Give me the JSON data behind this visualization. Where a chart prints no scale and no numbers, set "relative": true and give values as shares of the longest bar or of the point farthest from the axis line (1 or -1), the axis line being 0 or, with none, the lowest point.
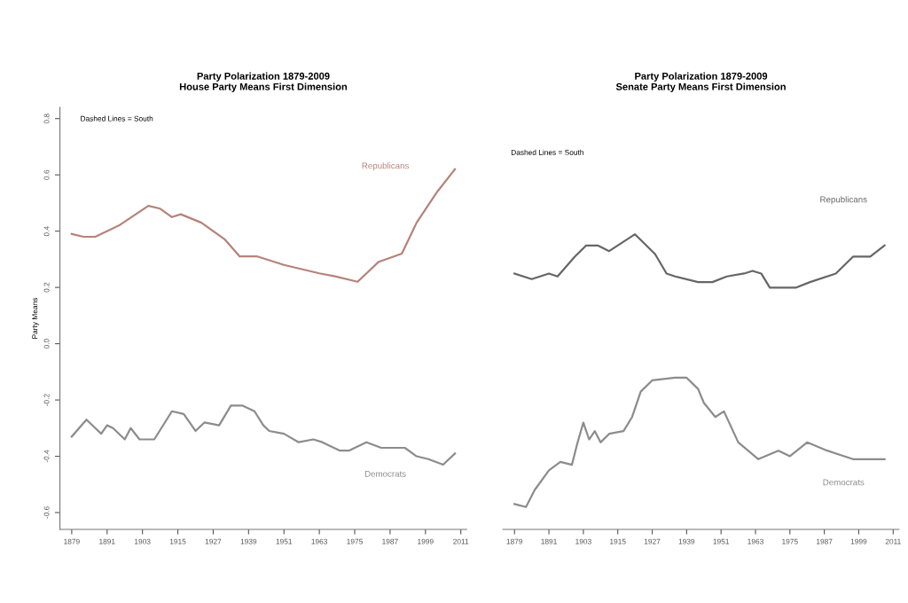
{
  "chart_data": [
    {
      "type": "line",
      "title": "Party Polarization 1879-2009",
      "subtitle": "House Party Means First Dimension",
      "ylabel": "Party Means",
      "annotations": [
        "Dashed Lines = South"
      ],
      "xlim": [
        1875,
        2013
      ],
      "xticks": [
        1879,
        1891,
        1903,
        1915,
        1927,
        1939,
        1951,
        1963,
        1975,
        1987,
        1999,
        2011
      ],
      "ylim": [
        -0.66,
        0.84
      ],
      "yticks": [
        {
          "value": 0.8,
          "label": "0.8"
        },
        {
          "value": 0.6,
          "label": "0.6"
        },
        {
          "value": 0.4,
          "label": "0.4"
        },
        {
          "value": 0.2,
          "label": "0.2"
        },
        {
          "value": 0.0,
          "label": "0.0"
        },
        {
          "value": -0.2,
          "label": "-0.2"
        },
        {
          "value": -0.4,
          "label": "-0.4"
        },
        {
          "value": -0.6,
          "label": "-0.6"
        }
      ],
      "grid": false,
      "legend": false,
      "line_style": "solid",
      "series": [
        {
          "name": "Republicans",
          "color": "#b5837a",
          "x": [
            1879,
            1883,
            1887,
            1895,
            1905,
            1909,
            1913,
            1916,
            1923,
            1931,
            1936,
            1942,
            1951,
            1963,
            1968,
            1976,
            1983,
            1991,
            1996,
            2003,
            2009
          ],
          "values": [
            0.39,
            0.38,
            0.38,
            0.42,
            0.49,
            0.48,
            0.45,
            0.46,
            0.43,
            0.37,
            0.31,
            0.31,
            0.28,
            0.25,
            0.24,
            0.22,
            0.29,
            0.32,
            0.43,
            0.54,
            0.62
          ]
        },
        {
          "name": "Democrats",
          "color": "#8c8c8c",
          "x": [
            1879,
            1884,
            1887,
            1889,
            1891,
            1893,
            1897,
            1899,
            1902,
            1907,
            1913,
            1917,
            1921,
            1924,
            1929,
            1933,
            1937,
            1941,
            1944,
            1946,
            1951,
            1956,
            1961,
            1964,
            1970,
            1973,
            1979,
            1984,
            1992,
            1996,
            2000,
            2005,
            2009
          ],
          "values": [
            -0.33,
            -0.27,
            -0.3,
            -0.32,
            -0.29,
            -0.3,
            -0.34,
            -0.3,
            -0.34,
            -0.34,
            -0.24,
            -0.25,
            -0.31,
            -0.28,
            -0.29,
            -0.22,
            -0.22,
            -0.24,
            -0.29,
            -0.31,
            -0.32,
            -0.35,
            -0.34,
            -0.35,
            -0.38,
            -0.38,
            -0.35,
            -0.37,
            -0.37,
            -0.4,
            -0.41,
            -0.43,
            -0.39
          ]
        }
      ]
    },
    {
      "type": "line",
      "title": "Party Polarization 1879-2009",
      "subtitle": "Senate Party Means First Dimension",
      "annotations": [
        "Dashed Lines = South"
      ],
      "xlim": [
        1875,
        2013
      ],
      "xticks": [
        1879,
        1891,
        1903,
        1915,
        1927,
        1939,
        1951,
        1963,
        1975,
        1987,
        1999,
        2011
      ],
      "tick_labels": "x",
      "relative": true,
      "grid": false,
      "legend": false,
      "line_style": "solid",
      "series": [
        {
          "name": "Republicans",
          "color": "#666666",
          "x": [
            1879,
            1885,
            1891,
            1894,
            1900,
            1904,
            1908,
            1912,
            1921,
            1924,
            1928,
            1932,
            1935,
            1943,
            1948,
            1953,
            1959,
            1962,
            1965,
            1968,
            1977,
            1982,
            1991,
            1997,
            2003,
            2008
          ],
          "values": [
            0.867,
            0.848,
            0.867,
            0.857,
            0.924,
            0.962,
            0.962,
            0.943,
            1,
            0.971,
            0.933,
            0.867,
            0.857,
            0.838,
            0.838,
            0.857,
            0.867,
            0.876,
            0.867,
            0.819,
            0.819,
            0.838,
            0.867,
            0.924,
            0.924,
            0.962
          ]
        },
        {
          "name": "Democrats",
          "color": "#8c8c8c",
          "x": [
            1879,
            1883,
            1886,
            1891,
            1895,
            1899,
            1901,
            1903,
            1905,
            1907,
            1909,
            1912,
            1917,
            1920,
            1923,
            1927,
            1935,
            1939,
            1943,
            1945,
            1949,
            1952,
            1957,
            1964,
            1971,
            1975,
            1981,
            1988,
            1997,
            2006,
            2008
          ],
          "values": [
            0.086,
            0.076,
            0.133,
            0.2,
            0.229,
            0.219,
            0.295,
            0.362,
            0.305,
            0.333,
            0.295,
            0.324,
            0.333,
            0.381,
            0.467,
            0.505,
            0.514,
            0.514,
            0.476,
            0.429,
            0.381,
            0.4,
            0.295,
            0.238,
            0.267,
            0.248,
            0.295,
            0.267,
            0.238,
            0.238,
            0.238
          ]
        }
      ]
    }
  ]
}
